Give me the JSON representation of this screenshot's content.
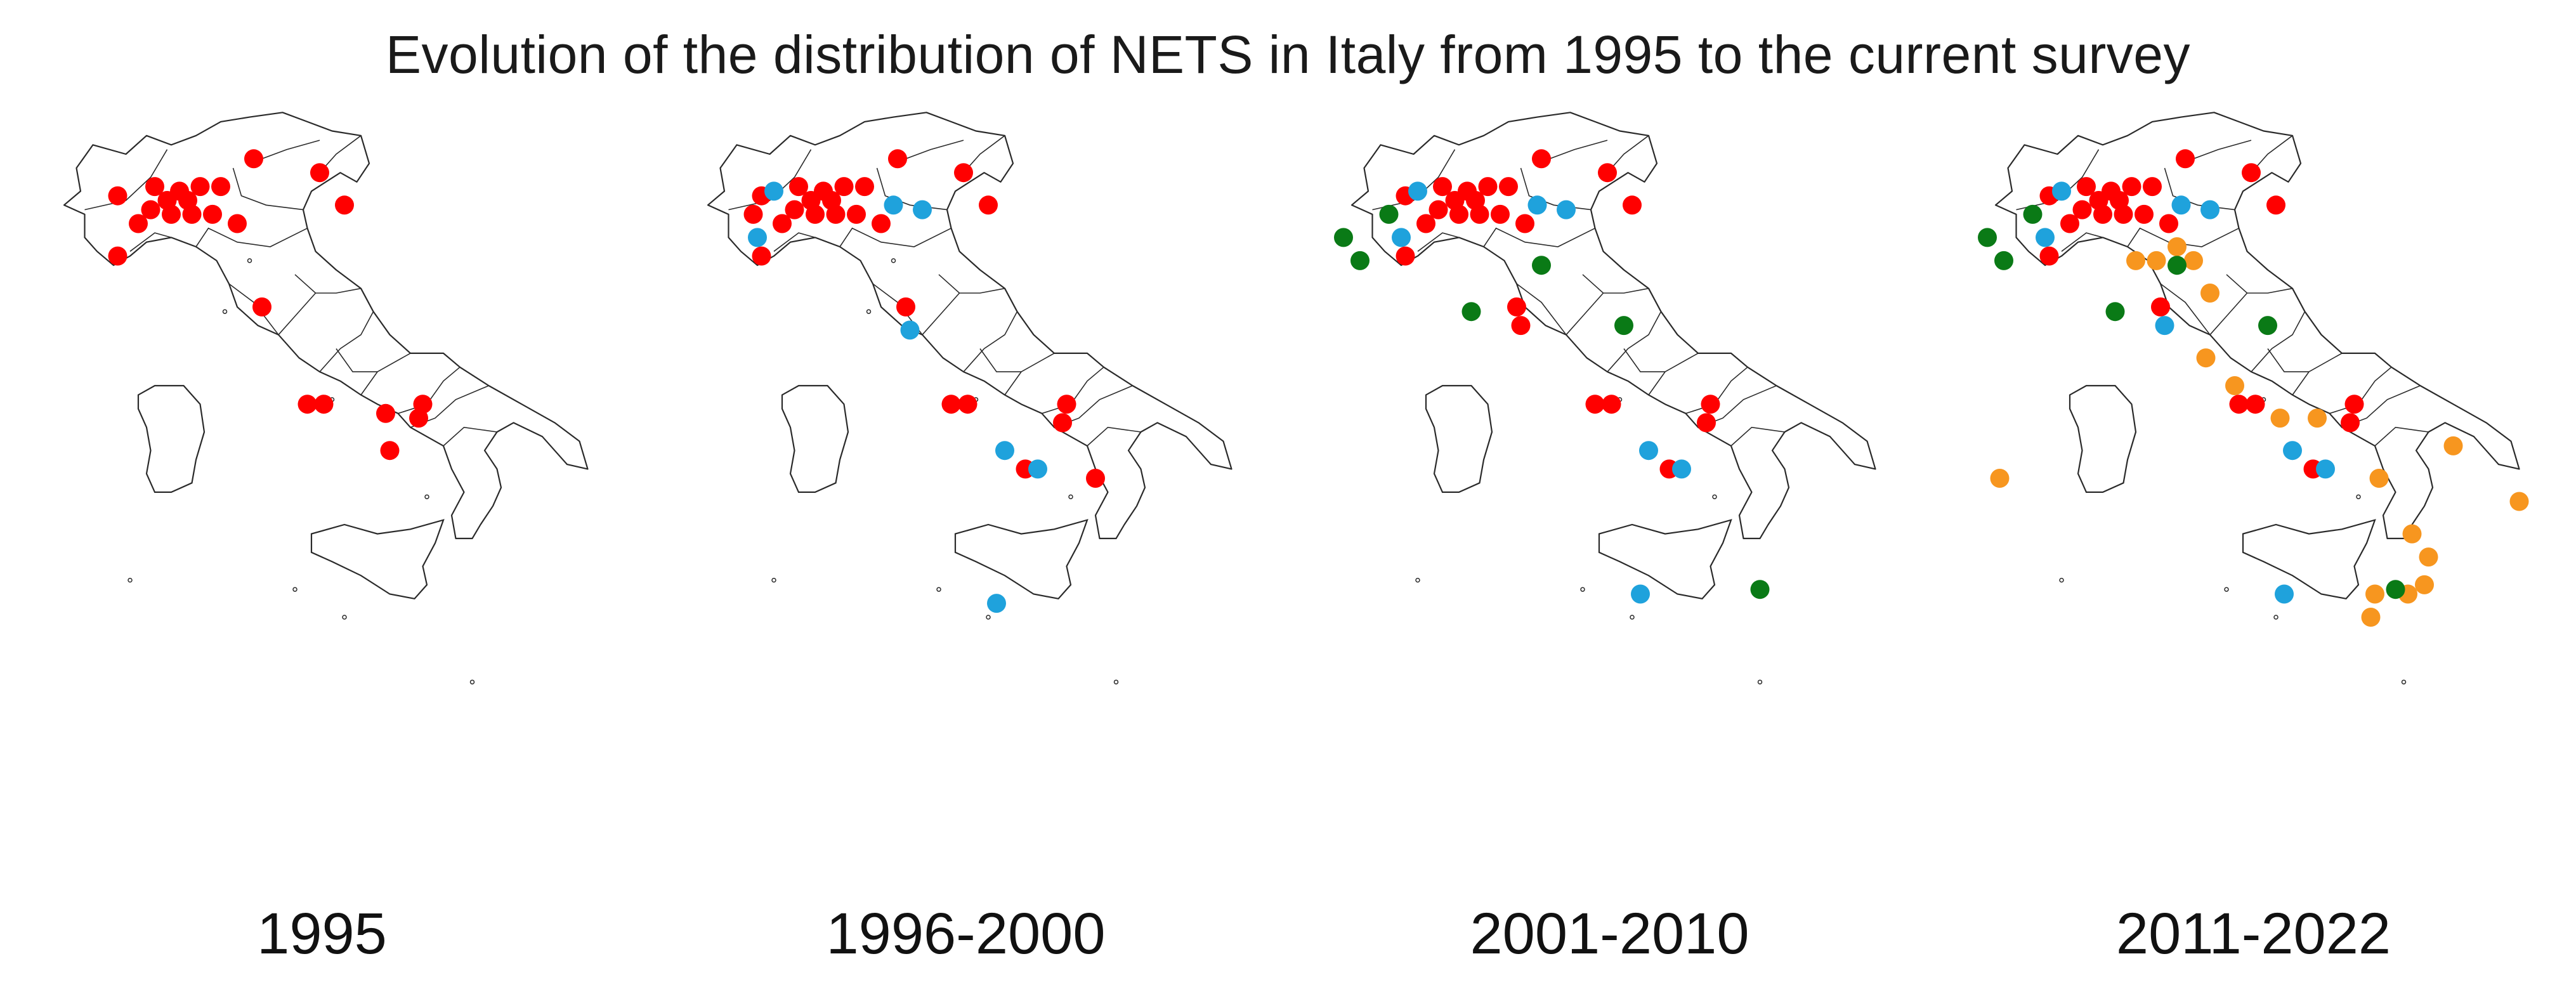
{
  "title": "Evolution of the distribution of NETS in Italy from 1995 to the current survey",
  "colors": {
    "red": "#ff0000",
    "blue": "#1fa2dc",
    "green": "#0a7a16",
    "orange": "#f7961f",
    "outline": "#2a2a2a"
  },
  "panels": [
    {
      "label": "1995",
      "points": [
        {
          "lon": 7.7,
          "lat": 45.3,
          "color": "red"
        },
        {
          "lon": 8.6,
          "lat": 45.5,
          "color": "red"
        },
        {
          "lon": 9.2,
          "lat": 45.4,
          "color": "red"
        },
        {
          "lon": 9.7,
          "lat": 45.5,
          "color": "red"
        },
        {
          "lon": 8.9,
          "lat": 45.2,
          "color": "red"
        },
        {
          "lon": 9.4,
          "lat": 45.2,
          "color": "red"
        },
        {
          "lon": 8.5,
          "lat": 45.0,
          "color": "red"
        },
        {
          "lon": 9.0,
          "lat": 44.9,
          "color": "red"
        },
        {
          "lon": 9.5,
          "lat": 44.9,
          "color": "red"
        },
        {
          "lon": 10.0,
          "lat": 44.9,
          "color": "red"
        },
        {
          "lon": 8.2,
          "lat": 44.7,
          "color": "red"
        },
        {
          "lon": 10.6,
          "lat": 44.7,
          "color": "red"
        },
        {
          "lon": 10.2,
          "lat": 45.5,
          "color": "red"
        },
        {
          "lon": 11.0,
          "lat": 46.1,
          "color": "red"
        },
        {
          "lon": 12.6,
          "lat": 45.8,
          "color": "red"
        },
        {
          "lon": 13.2,
          "lat": 45.1,
          "color": "red"
        },
        {
          "lon": 7.7,
          "lat": 44.0,
          "color": "red"
        },
        {
          "lon": 11.2,
          "lat": 42.9,
          "color": "red"
        },
        {
          "lon": 12.3,
          "lat": 40.8,
          "color": "red"
        },
        {
          "lon": 12.7,
          "lat": 40.8,
          "color": "red"
        },
        {
          "lon": 14.2,
          "lat": 40.6,
          "color": "red"
        },
        {
          "lon": 15.1,
          "lat": 40.8,
          "color": "red"
        },
        {
          "lon": 15.0,
          "lat": 40.5,
          "color": "red"
        },
        {
          "lon": 14.3,
          "lat": 39.8,
          "color": "red"
        }
      ]
    },
    {
      "label": "1996-2000",
      "points": [
        {
          "lon": 7.7,
          "lat": 45.3,
          "color": "red"
        },
        {
          "lon": 8.0,
          "lat": 45.4,
          "color": "blue"
        },
        {
          "lon": 8.6,
          "lat": 45.5,
          "color": "red"
        },
        {
          "lon": 9.2,
          "lat": 45.4,
          "color": "red"
        },
        {
          "lon": 9.7,
          "lat": 45.5,
          "color": "red"
        },
        {
          "lon": 8.9,
          "lat": 45.2,
          "color": "red"
        },
        {
          "lon": 9.4,
          "lat": 45.2,
          "color": "red"
        },
        {
          "lon": 7.5,
          "lat": 44.9,
          "color": "red"
        },
        {
          "lon": 8.5,
          "lat": 45.0,
          "color": "red"
        },
        {
          "lon": 9.0,
          "lat": 44.9,
          "color": "red"
        },
        {
          "lon": 9.5,
          "lat": 44.9,
          "color": "red"
        },
        {
          "lon": 10.0,
          "lat": 44.9,
          "color": "red"
        },
        {
          "lon": 8.2,
          "lat": 44.7,
          "color": "red"
        },
        {
          "lon": 7.6,
          "lat": 44.4,
          "color": "blue"
        },
        {
          "lon": 10.6,
          "lat": 44.7,
          "color": "red"
        },
        {
          "lon": 10.2,
          "lat": 45.5,
          "color": "red"
        },
        {
          "lon": 11.0,
          "lat": 46.1,
          "color": "red"
        },
        {
          "lon": 10.9,
          "lat": 45.1,
          "color": "blue"
        },
        {
          "lon": 11.6,
          "lat": 45.0,
          "color": "blue"
        },
        {
          "lon": 12.6,
          "lat": 45.8,
          "color": "red"
        },
        {
          "lon": 13.2,
          "lat": 45.1,
          "color": "red"
        },
        {
          "lon": 7.7,
          "lat": 44.0,
          "color": "red"
        },
        {
          "lon": 11.2,
          "lat": 42.9,
          "color": "red"
        },
        {
          "lon": 11.3,
          "lat": 42.4,
          "color": "blue"
        },
        {
          "lon": 12.3,
          "lat": 40.8,
          "color": "red"
        },
        {
          "lon": 12.7,
          "lat": 40.8,
          "color": "red"
        },
        {
          "lon": 15.1,
          "lat": 40.8,
          "color": "red"
        },
        {
          "lon": 15.0,
          "lat": 40.4,
          "color": "red"
        },
        {
          "lon": 13.6,
          "lat": 39.8,
          "color": "blue"
        },
        {
          "lon": 14.1,
          "lat": 39.4,
          "color": "red"
        },
        {
          "lon": 14.4,
          "lat": 39.4,
          "color": "blue"
        },
        {
          "lon": 15.8,
          "lat": 39.2,
          "color": "red"
        },
        {
          "lon": 13.4,
          "lat": 36.5,
          "color": "blue"
        }
      ]
    },
    {
      "label": "2001-2010",
      "points": [
        {
          "lon": 7.7,
          "lat": 45.3,
          "color": "red"
        },
        {
          "lon": 8.0,
          "lat": 45.4,
          "color": "blue"
        },
        {
          "lon": 8.6,
          "lat": 45.5,
          "color": "red"
        },
        {
          "lon": 9.2,
          "lat": 45.4,
          "color": "red"
        },
        {
          "lon": 9.7,
          "lat": 45.5,
          "color": "red"
        },
        {
          "lon": 8.9,
          "lat": 45.2,
          "color": "red"
        },
        {
          "lon": 9.4,
          "lat": 45.2,
          "color": "red"
        },
        {
          "lon": 8.5,
          "lat": 45.0,
          "color": "red"
        },
        {
          "lon": 9.0,
          "lat": 44.9,
          "color": "red"
        },
        {
          "lon": 9.5,
          "lat": 44.9,
          "color": "red"
        },
        {
          "lon": 10.0,
          "lat": 44.9,
          "color": "red"
        },
        {
          "lon": 8.2,
          "lat": 44.7,
          "color": "red"
        },
        {
          "lon": 10.6,
          "lat": 44.7,
          "color": "red"
        },
        {
          "lon": 10.2,
          "lat": 45.5,
          "color": "red"
        },
        {
          "lon": 11.0,
          "lat": 46.1,
          "color": "red"
        },
        {
          "lon": 10.9,
          "lat": 45.1,
          "color": "blue"
        },
        {
          "lon": 11.6,
          "lat": 45.0,
          "color": "blue"
        },
        {
          "lon": 12.6,
          "lat": 45.8,
          "color": "red"
        },
        {
          "lon": 13.2,
          "lat": 45.1,
          "color": "red"
        },
        {
          "lon": 7.3,
          "lat": 44.9,
          "color": "green"
        },
        {
          "lon": 6.2,
          "lat": 44.4,
          "color": "green"
        },
        {
          "lon": 6.6,
          "lat": 43.9,
          "color": "green"
        },
        {
          "lon": 7.6,
          "lat": 44.4,
          "color": "blue"
        },
        {
          "lon": 7.7,
          "lat": 44.0,
          "color": "red"
        },
        {
          "lon": 11.0,
          "lat": 43.8,
          "color": "green"
        },
        {
          "lon": 9.3,
          "lat": 42.8,
          "color": "green"
        },
        {
          "lon": 10.4,
          "lat": 42.9,
          "color": "red"
        },
        {
          "lon": 10.5,
          "lat": 42.5,
          "color": "red"
        },
        {
          "lon": 13.0,
          "lat": 42.5,
          "color": "green"
        },
        {
          "lon": 12.3,
          "lat": 40.8,
          "color": "red"
        },
        {
          "lon": 12.7,
          "lat": 40.8,
          "color": "red"
        },
        {
          "lon": 15.1,
          "lat": 40.8,
          "color": "red"
        },
        {
          "lon": 15.0,
          "lat": 40.4,
          "color": "red"
        },
        {
          "lon": 13.6,
          "lat": 39.8,
          "color": "blue"
        },
        {
          "lon": 14.1,
          "lat": 39.4,
          "color": "red"
        },
        {
          "lon": 14.4,
          "lat": 39.4,
          "color": "blue"
        },
        {
          "lon": 13.4,
          "lat": 36.7,
          "color": "blue"
        },
        {
          "lon": 16.3,
          "lat": 36.8,
          "color": "green"
        }
      ]
    },
    {
      "label": "2011-2022",
      "points": [
        {
          "lon": 7.7,
          "lat": 45.3,
          "color": "red"
        },
        {
          "lon": 8.0,
          "lat": 45.4,
          "color": "blue"
        },
        {
          "lon": 8.6,
          "lat": 45.5,
          "color": "red"
        },
        {
          "lon": 9.2,
          "lat": 45.4,
          "color": "red"
        },
        {
          "lon": 9.7,
          "lat": 45.5,
          "color": "red"
        },
        {
          "lon": 8.9,
          "lat": 45.2,
          "color": "red"
        },
        {
          "lon": 9.4,
          "lat": 45.2,
          "color": "red"
        },
        {
          "lon": 8.5,
          "lat": 45.0,
          "color": "red"
        },
        {
          "lon": 9.0,
          "lat": 44.9,
          "color": "red"
        },
        {
          "lon": 9.5,
          "lat": 44.9,
          "color": "red"
        },
        {
          "lon": 10.0,
          "lat": 44.9,
          "color": "red"
        },
        {
          "lon": 8.2,
          "lat": 44.7,
          "color": "red"
        },
        {
          "lon": 10.6,
          "lat": 44.7,
          "color": "red"
        },
        {
          "lon": 10.2,
          "lat": 45.5,
          "color": "red"
        },
        {
          "lon": 11.0,
          "lat": 46.1,
          "color": "red"
        },
        {
          "lon": 10.9,
          "lat": 45.1,
          "color": "blue"
        },
        {
          "lon": 11.6,
          "lat": 45.0,
          "color": "blue"
        },
        {
          "lon": 12.6,
          "lat": 45.8,
          "color": "red"
        },
        {
          "lon": 13.2,
          "lat": 45.1,
          "color": "red"
        },
        {
          "lon": 7.3,
          "lat": 44.9,
          "color": "green"
        },
        {
          "lon": 6.2,
          "lat": 44.4,
          "color": "green"
        },
        {
          "lon": 6.6,
          "lat": 43.9,
          "color": "green"
        },
        {
          "lon": 7.6,
          "lat": 44.4,
          "color": "blue"
        },
        {
          "lon": 7.7,
          "lat": 44.0,
          "color": "red"
        },
        {
          "lon": 9.8,
          "lat": 43.9,
          "color": "orange"
        },
        {
          "lon": 10.3,
          "lat": 43.9,
          "color": "orange"
        },
        {
          "lon": 10.8,
          "lat": 44.2,
          "color": "orange"
        },
        {
          "lon": 11.2,
          "lat": 43.9,
          "color": "orange"
        },
        {
          "lon": 10.8,
          "lat": 43.8,
          "color": "green"
        },
        {
          "lon": 11.6,
          "lat": 43.2,
          "color": "orange"
        },
        {
          "lon": 9.3,
          "lat": 42.8,
          "color": "green"
        },
        {
          "lon": 10.4,
          "lat": 42.9,
          "color": "red"
        },
        {
          "lon": 10.5,
          "lat": 42.5,
          "color": "blue"
        },
        {
          "lon": 13.0,
          "lat": 42.5,
          "color": "green"
        },
        {
          "lon": 11.5,
          "lat": 41.8,
          "color": "orange"
        },
        {
          "lon": 12.2,
          "lat": 41.2,
          "color": "orange"
        },
        {
          "lon": 12.3,
          "lat": 40.8,
          "color": "red"
        },
        {
          "lon": 12.7,
          "lat": 40.8,
          "color": "red"
        },
        {
          "lon": 13.3,
          "lat": 40.5,
          "color": "orange"
        },
        {
          "lon": 14.2,
          "lat": 40.5,
          "color": "orange"
        },
        {
          "lon": 15.1,
          "lat": 40.8,
          "color": "red"
        },
        {
          "lon": 15.0,
          "lat": 40.4,
          "color": "red"
        },
        {
          "lon": 13.6,
          "lat": 39.8,
          "color": "blue"
        },
        {
          "lon": 14.1,
          "lat": 39.4,
          "color": "red"
        },
        {
          "lon": 14.4,
          "lat": 39.4,
          "color": "blue"
        },
        {
          "lon": 15.7,
          "lat": 39.2,
          "color": "orange"
        },
        {
          "lon": 17.5,
          "lat": 39.9,
          "color": "orange"
        },
        {
          "lon": 19.1,
          "lat": 38.7,
          "color": "orange"
        },
        {
          "lon": 6.5,
          "lat": 39.2,
          "color": "orange"
        },
        {
          "lon": 16.5,
          "lat": 38.0,
          "color": "orange"
        },
        {
          "lon": 16.9,
          "lat": 37.5,
          "color": "orange"
        },
        {
          "lon": 16.8,
          "lat": 36.9,
          "color": "orange"
        },
        {
          "lon": 16.4,
          "lat": 36.7,
          "color": "orange"
        },
        {
          "lon": 16.1,
          "lat": 36.8,
          "color": "green"
        },
        {
          "lon": 15.6,
          "lat": 36.7,
          "color": "orange"
        },
        {
          "lon": 15.5,
          "lat": 36.2,
          "color": "orange"
        },
        {
          "lon": 13.4,
          "lat": 36.7,
          "color": "blue"
        }
      ]
    }
  ]
}
